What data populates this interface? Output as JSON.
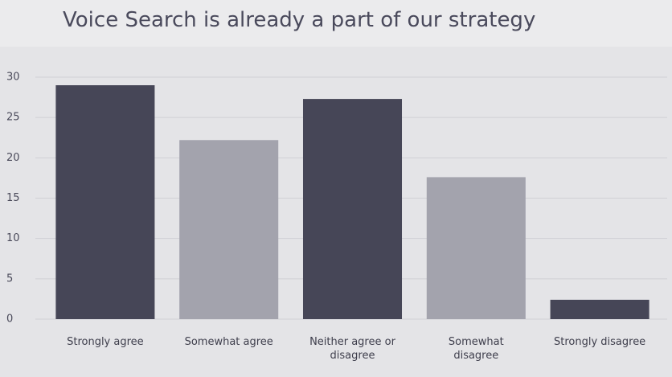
{
  "chart_data": {
    "type": "bar",
    "title": "Voice Search is already a part of our strategy",
    "categories": [
      "Strongly agree",
      "Somewhat agree",
      "Neither agree or\ndisagree",
      "Somewhat\ndisagree",
      "Strongly disagree"
    ],
    "values": [
      29,
      22.2,
      27.3,
      17.6,
      2.4
    ],
    "colors": [
      "#464657",
      "#a3a3ad",
      "#464657",
      "#a3a3ad",
      "#464657"
    ],
    "ylim": [
      0,
      30
    ],
    "yticks": [
      0,
      5,
      10,
      15,
      20,
      25,
      30
    ],
    "grid": true
  }
}
